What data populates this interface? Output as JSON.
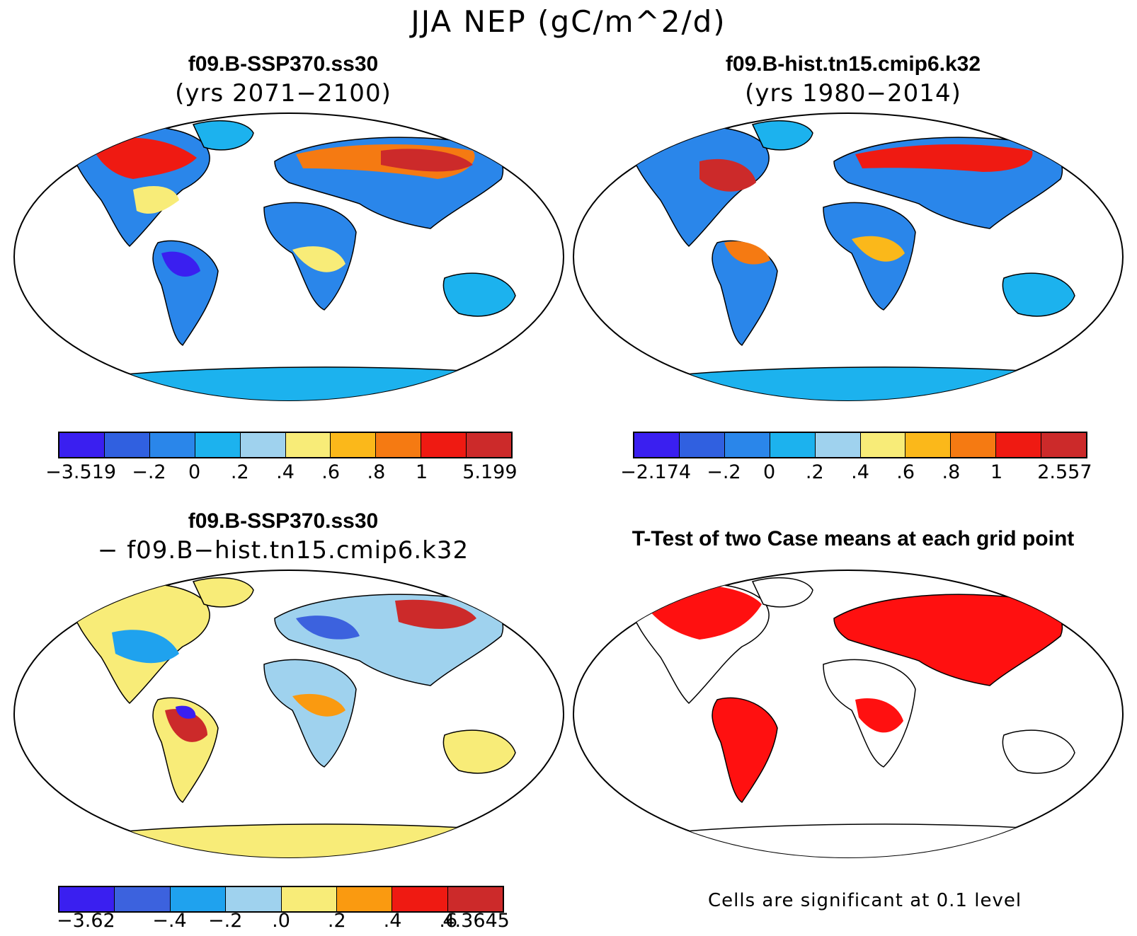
{
  "title": "JJA NEP (gC/m^2/d)",
  "panels": {
    "top_left": {
      "title": "f09.B-SSP370.ss30",
      "subtitle": "(yrs 2071−2100)"
    },
    "top_right": {
      "title": "f09.B-hist.tn15.cmip6.k32",
      "subtitle": "(yrs 1980−2014)"
    },
    "bottom_left": {
      "title": "f09.B-SSP370.ss30",
      "subtitle": "− f09.B−hist.tn15.cmip6.k32"
    },
    "bottom_right": {
      "title": "T-Test of two Case means at each grid point",
      "note": "Cells are significant at 0.1 level"
    }
  },
  "colorbars": {
    "top_left": {
      "colors": [
        "#3a1ff0",
        "#3060e0",
        "#2a86ea",
        "#1cb2ee",
        "#9fd2ee",
        "#f8ec78",
        "#fbb81a",
        "#f57a12",
        "#ef1a12",
        "#cc2a2a"
      ],
      "labels": [
        "−3.519",
        "−.2",
        "0",
        ".2",
        ".4",
        ".6",
        ".8",
        "1",
        "5.199"
      ]
    },
    "top_right": {
      "colors": [
        "#3a1ff0",
        "#3060e0",
        "#2a86ea",
        "#1cb2ee",
        "#9fd2ee",
        "#f8ec78",
        "#fbb81a",
        "#f57a12",
        "#ef1a12",
        "#cc2a2a"
      ],
      "labels": [
        "−2.174",
        "−.2",
        "0",
        ".2",
        ".4",
        ".6",
        ".8",
        "1",
        "2.557"
      ]
    },
    "bottom_left": {
      "colors": [
        "#3a1ff0",
        "#3c62de",
        "#1fa2ee",
        "#9fd2ee",
        "#f8ec78",
        "#fa9a10",
        "#ef1a12",
        "#cc2a2a"
      ],
      "labels": [
        "−3.62",
        "−.4",
        "−.2",
        ".0",
        ".2",
        ".4",
        ".6",
        "4.3645"
      ]
    }
  }
}
